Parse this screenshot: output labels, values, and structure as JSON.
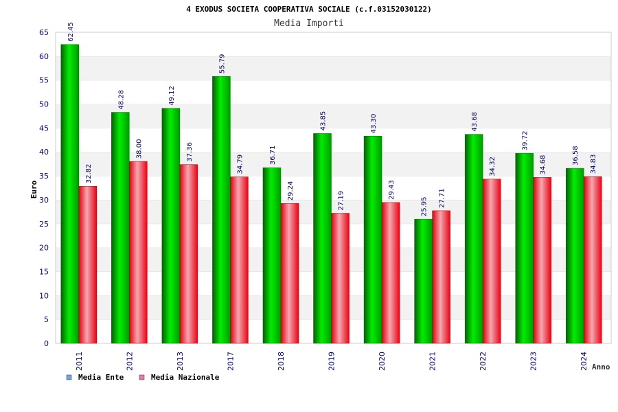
{
  "chart_data": {
    "type": "bar",
    "title": "4 EXODUS SOCIETA COOPERATIVA SOCIALE (c.f.03152030122)",
    "subtitle": "Media Importi",
    "xlabel": "Anno",
    "ylabel": "Euro",
    "ylim": [
      0,
      65
    ],
    "yticks": [
      "0",
      "5",
      "10",
      "15",
      "20",
      "25",
      "30",
      "35",
      "40",
      "45",
      "50",
      "55",
      "60",
      "65"
    ],
    "grid": true,
    "legend_position": "bottom-left",
    "categories": [
      "2011",
      "2012",
      "2013",
      "2017",
      "2018",
      "2019",
      "2020",
      "2021",
      "2022",
      "2023",
      "2024"
    ],
    "series": [
      {
        "name": "Media Ente",
        "color": "#00cc00",
        "values": [
          62.45,
          48.28,
          49.12,
          55.79,
          36.71,
          43.85,
          43.3,
          25.95,
          43.68,
          39.72,
          36.58
        ],
        "labels": [
          "62.45",
          "48.28",
          "49.12",
          "55.79",
          "36.71",
          "43.85",
          "43.30",
          "25.95",
          "43.68",
          "39.72",
          "36.58"
        ]
      },
      {
        "name": "Media Nazionale",
        "color": "#ee1122",
        "values": [
          32.82,
          38.0,
          37.36,
          34.79,
          29.24,
          27.19,
          29.43,
          27.71,
          34.32,
          34.68,
          34.83
        ],
        "labels": [
          "32.82",
          "38.00",
          "37.36",
          "34.79",
          "29.24",
          "27.19",
          "29.43",
          "27.71",
          "34.32",
          "34.68",
          "34.83"
        ]
      }
    ]
  },
  "legend": {
    "items": [
      {
        "label": "Media Ente",
        "swatch_color": "#6aa6e6"
      },
      {
        "label": "Media Nazionale",
        "swatch_color": "#e67aa6"
      }
    ]
  },
  "colors": {
    "axis_text": "#00008b",
    "band": "#f2f2f2",
    "grid": "#dddddd",
    "label_text": "#000066"
  }
}
